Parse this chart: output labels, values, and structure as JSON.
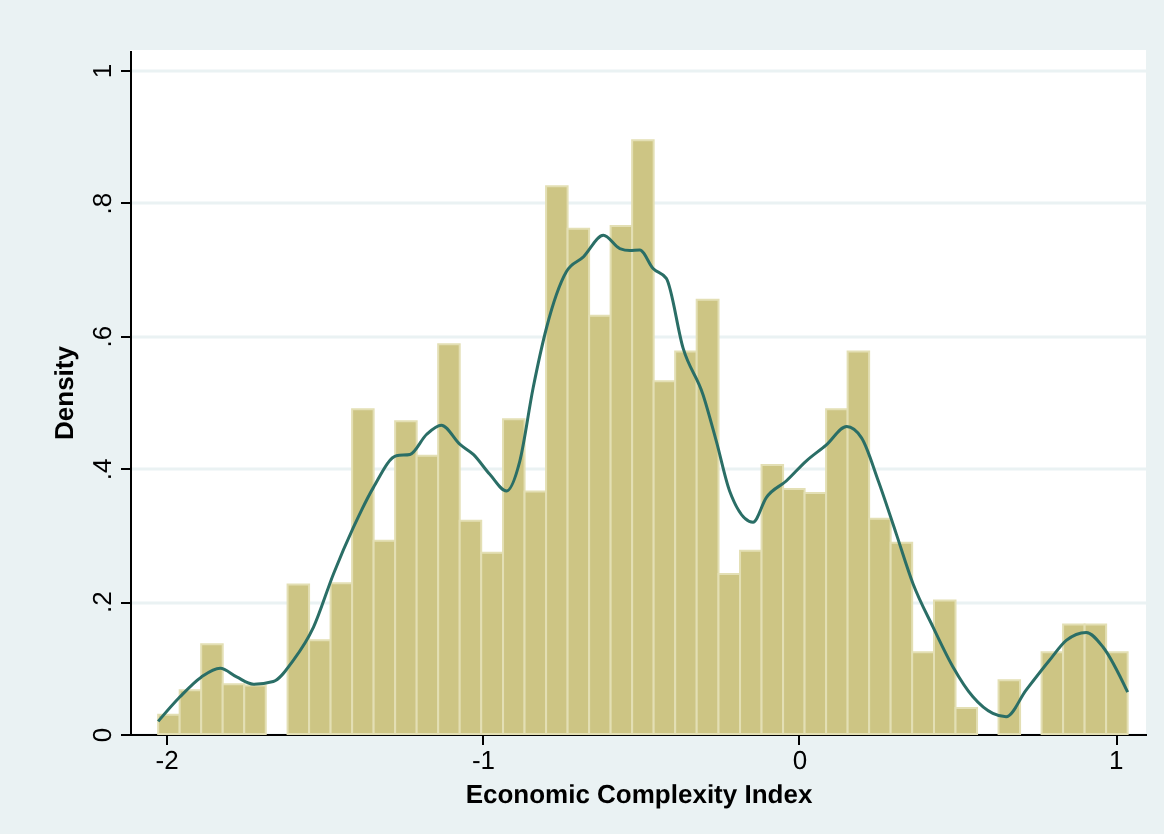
{
  "chart_data": {
    "type": "histogram",
    "xlabel": "Economic Complexity Index",
    "ylabel": "Density",
    "color": "#cdc584",
    "bins": [
      -2.025,
      -1.957,
      -1.889,
      -1.821,
      -1.753,
      -1.685,
      -1.616,
      -1.548,
      -1.48,
      -1.412,
      -1.344,
      -1.276,
      -1.208,
      -1.14,
      -1.072,
      -1.004,
      -0.935,
      -0.867,
      -0.799,
      -0.731,
      -0.663,
      -0.595,
      -0.527,
      -0.459,
      -0.391,
      -0.323,
      -0.254,
      -0.186,
      -0.118,
      -0.05,
      0.018,
      0.086,
      0.154,
      0.222,
      0.29,
      0.358,
      0.427,
      0.495,
      0.563,
      0.631,
      0.699,
      0.767,
      0.835,
      0.903,
      0.971,
      1.039
    ],
    "values": [
      0.029,
      0.066,
      0.135,
      0.075,
      0.073,
      0,
      0.225,
      0.141,
      0.227,
      0.489,
      0.291,
      0.471,
      0.419,
      0.587,
      0.321,
      0.273,
      0.474,
      0.365,
      0.825,
      0.761,
      0.63,
      0.765,
      0.894,
      0.531,
      0.576,
      0.654,
      0.241,
      0.276,
      0.405,
      0.369,
      0.363,
      0.489,
      0.576,
      0.324,
      0.288,
      0.123,
      0.201,
      0.039,
      0,
      0.081,
      0,
      0.123,
      0.165,
      0.165,
      0.123
    ],
    "series": [
      {
        "type": "line",
        "color": "#2a6e66",
        "x": [
          -2.025,
          -1.956,
          -1.888,
          -1.829,
          -1.777,
          -1.724,
          -1.661,
          -1.598,
          -1.534,
          -1.471,
          -1.408,
          -1.345,
          -1.272,
          -1.229,
          -1.177,
          -1.13,
          -1.071,
          -1.029,
          -0.977,
          -0.924,
          -0.882,
          -0.84,
          -0.798,
          -0.735,
          -0.682,
          -0.618,
          -0.566,
          -0.534,
          -0.503,
          -0.461,
          -0.419,
          -0.366,
          -0.303,
          -0.261,
          -0.219,
          -0.145,
          -0.103,
          -0.04,
          0.023,
          0.086,
          0.151,
          0.198,
          0.251,
          0.308,
          0.361,
          0.424,
          0.487,
          0.55,
          0.613,
          0.655,
          0.718,
          0.792,
          0.845,
          0.908,
          0.961,
          1.039
        ],
        "values": [
          0.019,
          0.056,
          0.086,
          0.099,
          0.086,
          0.075,
          0.079,
          0.111,
          0.161,
          0.241,
          0.311,
          0.371,
          0.419,
          0.421,
          0.451,
          0.465,
          0.436,
          0.421,
          0.391,
          0.366,
          0.411,
          0.521,
          0.611,
          0.696,
          0.718,
          0.751,
          0.731,
          0.728,
          0.729,
          0.701,
          0.686,
          0.581,
          0.511,
          0.441,
          0.366,
          0.319,
          0.356,
          0.381,
          0.411,
          0.435,
          0.463,
          0.446,
          0.381,
          0.301,
          0.226,
          0.161,
          0.101,
          0.056,
          0.031,
          0.026,
          0.066,
          0.111,
          0.141,
          0.153,
          0.131,
          0.063
        ]
      }
    ],
    "xlim": [
      -2.114,
      1.097
    ],
    "ylim": [
      0,
      1.03
    ],
    "xticks": [
      -2,
      -1,
      0,
      1
    ],
    "yticks": [
      0,
      {
        "value": 0.2,
        "label": ".2"
      },
      {
        "value": 0.4,
        "label": ".4"
      },
      {
        "value": 0.6,
        "label": ".6"
      },
      {
        "value": 0.8,
        "label": ".8"
      },
      1
    ],
    "grid": "y"
  }
}
